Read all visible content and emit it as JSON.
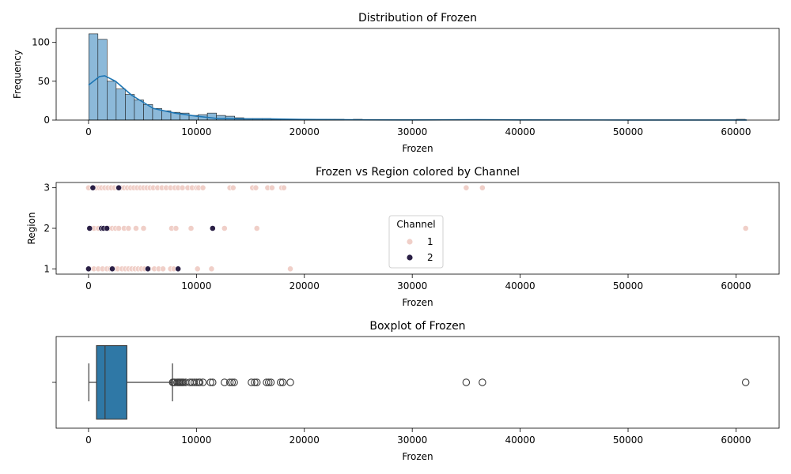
{
  "chart_data": [
    {
      "type": "histogram",
      "title": "Distribution of Frozen",
      "xlabel": "Frozen",
      "ylabel": "Frequency",
      "xlim": [
        -3000,
        64000
      ],
      "ylim": [
        0,
        118
      ],
      "xticks": [
        0,
        10000,
        20000,
        30000,
        40000,
        50000,
        60000
      ],
      "yticks": [
        0,
        50,
        100
      ],
      "bin_width": 845,
      "bin_start": 25,
      "counts": [
        111,
        104,
        50,
        40,
        33,
        26,
        20,
        15,
        12,
        10,
        9,
        6,
        7,
        9,
        6,
        5,
        3,
        2,
        2,
        2,
        1,
        1,
        1,
        1,
        1,
        1,
        1,
        1,
        0,
        1,
        0,
        0,
        0,
        0,
        0,
        0,
        0,
        0,
        0,
        0,
        0,
        0,
        0,
        0,
        0,
        0,
        0,
        0,
        0,
        0,
        0,
        0,
        0,
        0,
        0,
        0,
        0,
        0,
        0,
        0,
        0,
        0,
        0,
        0,
        0,
        0,
        0,
        0,
        0,
        0,
        0,
        1
      ],
      "kde": [
        [
          0,
          45
        ],
        [
          1000,
          56
        ],
        [
          1500,
          57
        ],
        [
          2500,
          50
        ],
        [
          4000,
          32
        ],
        [
          6000,
          15
        ],
        [
          8000,
          9
        ],
        [
          10000,
          5
        ],
        [
          12000,
          2
        ],
        [
          15000,
          1.5
        ],
        [
          17000,
          1.5
        ],
        [
          20000,
          0.8
        ],
        [
          25000,
          0.3
        ],
        [
          30000,
          0.2
        ],
        [
          36000,
          0.4
        ],
        [
          40000,
          0.2
        ],
        [
          50000,
          0.1
        ],
        [
          61000,
          0.05
        ]
      ],
      "bar_color": "#8cb9d9",
      "kde_color": "#1f77b4"
    },
    {
      "type": "scatter",
      "title": "Frozen vs Region colored by Channel",
      "xlabel": "Frozen",
      "ylabel": "Region",
      "xlim": [
        -3000,
        64000
      ],
      "ylim": [
        0.87,
        3.13
      ],
      "xticks": [
        0,
        10000,
        20000,
        30000,
        40000,
        50000,
        60000
      ],
      "yticks": [
        1,
        2,
        3
      ],
      "legend": {
        "title": "Channel",
        "position": "center",
        "entries": [
          "1",
          "2"
        ]
      },
      "series": [
        {
          "name": "1",
          "color": "#f0cfc8",
          "points": [
            [
              0,
              3
            ],
            [
              400,
              3
            ],
            [
              700,
              3
            ],
            [
              1000,
              3
            ],
            [
              1200,
              3
            ],
            [
              1500,
              3
            ],
            [
              1800,
              3
            ],
            [
              2100,
              3
            ],
            [
              2400,
              3
            ],
            [
              2700,
              3
            ],
            [
              3000,
              3
            ],
            [
              3300,
              3
            ],
            [
              3600,
              3
            ],
            [
              3900,
              3
            ],
            [
              4200,
              3
            ],
            [
              4500,
              3
            ],
            [
              4800,
              3
            ],
            [
              5100,
              3
            ],
            [
              5400,
              3
            ],
            [
              5700,
              3
            ],
            [
              6000,
              3
            ],
            [
              6400,
              3
            ],
            [
              6800,
              3
            ],
            [
              7200,
              3
            ],
            [
              7600,
              3
            ],
            [
              8000,
              3
            ],
            [
              8300,
              3
            ],
            [
              8700,
              3
            ],
            [
              9200,
              3
            ],
            [
              9600,
              3
            ],
            [
              10000,
              3
            ],
            [
              10200,
              3
            ],
            [
              10600,
              3
            ],
            [
              13100,
              3
            ],
            [
              13400,
              3
            ],
            [
              15200,
              3
            ],
            [
              15500,
              3
            ],
            [
              16600,
              3
            ],
            [
              17000,
              3
            ],
            [
              17900,
              3
            ],
            [
              18100,
              3
            ],
            [
              35000,
              3
            ],
            [
              36500,
              3
            ],
            [
              200,
              2
            ],
            [
              500,
              2
            ],
            [
              900,
              2
            ],
            [
              1400,
              2
            ],
            [
              1900,
              2
            ],
            [
              2200,
              2
            ],
            [
              2500,
              2
            ],
            [
              2800,
              2
            ],
            [
              3300,
              2
            ],
            [
              3700,
              2
            ],
            [
              4400,
              2
            ],
            [
              5100,
              2
            ],
            [
              7700,
              2
            ],
            [
              8100,
              2
            ],
            [
              9500,
              2
            ],
            [
              12600,
              2
            ],
            [
              15600,
              2
            ],
            [
              60900,
              2
            ],
            [
              100,
              1
            ],
            [
              500,
              1
            ],
            [
              900,
              1
            ],
            [
              1300,
              1
            ],
            [
              1700,
              1
            ],
            [
              2000,
              1
            ],
            [
              2400,
              1
            ],
            [
              2700,
              1
            ],
            [
              3100,
              1
            ],
            [
              3400,
              1
            ],
            [
              3700,
              1
            ],
            [
              4000,
              1
            ],
            [
              4300,
              1
            ],
            [
              4600,
              1
            ],
            [
              4900,
              1
            ],
            [
              5200,
              1
            ],
            [
              5600,
              1
            ],
            [
              6100,
              1
            ],
            [
              6500,
              1
            ],
            [
              6900,
              1
            ],
            [
              7600,
              1
            ],
            [
              7900,
              1
            ],
            [
              10100,
              1
            ],
            [
              11400,
              1
            ],
            [
              18700,
              1
            ]
          ]
        },
        {
          "name": "2",
          "color": "#2a1f45",
          "points": [
            [
              400,
              3
            ],
            [
              2800,
              3
            ],
            [
              100,
              2
            ],
            [
              1200,
              2
            ],
            [
              1400,
              2
            ],
            [
              1700,
              2
            ],
            [
              11500,
              2
            ],
            [
              0,
              1
            ],
            [
              2200,
              1
            ],
            [
              5500,
              1
            ],
            [
              8300,
              1
            ]
          ]
        }
      ]
    },
    {
      "type": "box",
      "title": "Boxplot of Frozen",
      "xlabel": "Frozen",
      "xlim": [
        -3000,
        64000
      ],
      "xticks": [
        0,
        10000,
        20000,
        30000,
        40000,
        50000,
        60000
      ],
      "whisker_low": 25,
      "q1": 740,
      "median": 1530,
      "q3": 3550,
      "whisker_high": 7780,
      "outliers": [
        7800,
        7900,
        8000,
        8200,
        8300,
        8400,
        8500,
        8600,
        8700,
        8800,
        9000,
        9400,
        9600,
        9800,
        10000,
        10200,
        10300,
        10600,
        11300,
        11500,
        12600,
        13100,
        13300,
        13500,
        15100,
        15400,
        15600,
        16500,
        16700,
        16900,
        17800,
        18000,
        18700,
        35000,
        36500,
        60900
      ],
      "box_color": "#2f78a6"
    }
  ]
}
